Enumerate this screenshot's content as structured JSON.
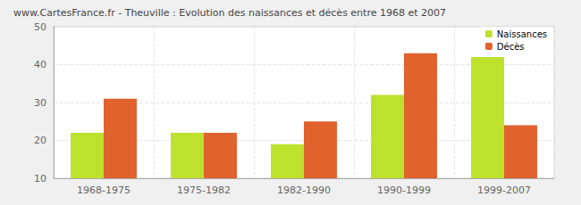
{
  "chart_data": {
    "type": "bar",
    "title": "www.CartesFrance.fr - Theuville : Evolution des naissances et décès entre 1968 et 2007",
    "categories": [
      "1968-1975",
      "1975-1982",
      "1982-1990",
      "1990-1999",
      "1999-2007"
    ],
    "series": [
      {
        "name": "Naissances",
        "color": "#bde12d",
        "values": [
          22,
          22,
          19,
          32,
          42
        ]
      },
      {
        "name": "Décès",
        "color": "#e0622d",
        "values": [
          31,
          22,
          25,
          43,
          24
        ]
      }
    ],
    "ylim": [
      10,
      50
    ],
    "yticks": [
      10,
      20,
      30,
      40,
      50
    ],
    "grid": true,
    "legend": "top-right"
  }
}
